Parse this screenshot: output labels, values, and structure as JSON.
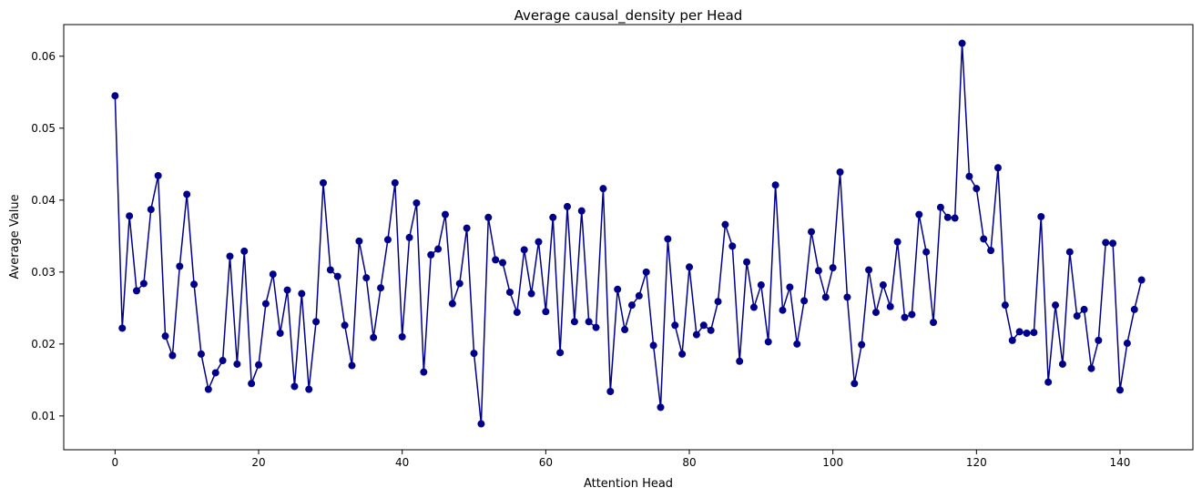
{
  "chart_data": {
    "type": "line",
    "title": "Average causal_density per Head",
    "xlabel": "Attention Head",
    "ylabel": "Average Value",
    "xlim": [
      -7.15,
      150.15
    ],
    "ylim": [
      0.0053,
      0.0644
    ],
    "xticks": [
      0,
      20,
      40,
      60,
      80,
      100,
      120,
      140
    ],
    "yticks": [
      0.01,
      0.02,
      0.03,
      0.04,
      0.05,
      0.06
    ],
    "grid": false,
    "legend": "none",
    "line_color": "#00008b",
    "marker": "circle",
    "x": [
      0,
      1,
      2,
      3,
      4,
      5,
      6,
      7,
      8,
      9,
      10,
      11,
      12,
      13,
      14,
      15,
      16,
      17,
      18,
      19,
      20,
      21,
      22,
      23,
      24,
      25,
      26,
      27,
      28,
      29,
      30,
      31,
      32,
      33,
      34,
      35,
      36,
      37,
      38,
      39,
      40,
      41,
      42,
      43,
      44,
      45,
      46,
      47,
      48,
      49,
      50,
      51,
      52,
      53,
      54,
      55,
      56,
      57,
      58,
      59,
      60,
      61,
      62,
      63,
      64,
      65,
      66,
      67,
      68,
      69,
      70,
      71,
      72,
      73,
      74,
      75,
      76,
      77,
      78,
      79,
      80,
      81,
      82,
      83,
      84,
      85,
      86,
      87,
      88,
      89,
      90,
      91,
      92,
      93,
      94,
      95,
      96,
      97,
      98,
      99,
      100,
      101,
      102,
      103,
      104,
      105,
      106,
      107,
      108,
      109,
      110,
      111,
      112,
      113,
      114,
      115,
      116,
      117,
      118,
      119,
      120,
      121,
      122,
      123,
      124,
      125,
      126,
      127,
      128,
      129,
      130,
      131,
      132,
      133,
      134,
      135,
      136,
      137,
      138,
      139,
      140,
      141,
      142,
      143
    ],
    "series": [
      {
        "values": [
          0.0545,
          0.0222,
          0.0378,
          0.0274,
          0.0284,
          0.0387,
          0.0434,
          0.0211,
          0.0184,
          0.0308,
          0.0408,
          0.0283,
          0.0186,
          0.0137,
          0.016,
          0.0177,
          0.0322,
          0.0172,
          0.0329,
          0.0145,
          0.0171,
          0.0256,
          0.0297,
          0.0215,
          0.0275,
          0.0141,
          0.027,
          0.0137,
          0.0231,
          0.0424,
          0.0303,
          0.0294,
          0.0226,
          0.017,
          0.0343,
          0.0292,
          0.0209,
          0.0278,
          0.0345,
          0.0424,
          0.021,
          0.0348,
          0.0396,
          0.0161,
          0.0324,
          0.0332,
          0.038,
          0.0256,
          0.0284,
          0.0361,
          0.0187,
          0.0089,
          0.0376,
          0.0317,
          0.0313,
          0.0272,
          0.0244,
          0.0331,
          0.027,
          0.0342,
          0.0245,
          0.0376,
          0.0188,
          0.0391,
          0.0231,
          0.0385,
          0.0231,
          0.0223,
          0.0416,
          0.0134,
          0.0276,
          0.022,
          0.0254,
          0.0267,
          0.03,
          0.0198,
          0.0112,
          0.0346,
          0.0226,
          0.0186,
          0.0307,
          0.0213,
          0.0226,
          0.0219,
          0.0259,
          0.0366,
          0.0336,
          0.0176,
          0.0314,
          0.0251,
          0.0282,
          0.0203,
          0.0421,
          0.0247,
          0.0279,
          0.02,
          0.026,
          0.0356,
          0.0302,
          0.0265,
          0.0306,
          0.0439,
          0.0265,
          0.0145,
          0.0199,
          0.0303,
          0.0244,
          0.0282,
          0.0252,
          0.0342,
          0.0237,
          0.0241,
          0.038,
          0.0328,
          0.023,
          0.039,
          0.0376,
          0.0375,
          0.0618,
          0.0433,
          0.0416,
          0.0346,
          0.033,
          0.0445,
          0.0254,
          0.0205,
          0.0217,
          0.0215,
          0.0216,
          0.0377,
          0.0147,
          0.0254,
          0.0172,
          0.0328,
          0.0239,
          0.0248,
          0.0166,
          0.0205,
          0.0341,
          0.034,
          0.0136,
          0.0201,
          0.0248,
          0.0289
        ]
      }
    ]
  }
}
